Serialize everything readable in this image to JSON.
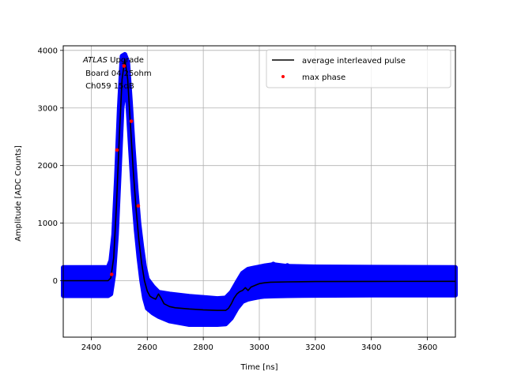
{
  "chart_data": {
    "type": "line",
    "xlabel": "Time [ns]",
    "ylabel": "Amplitude [ADC Counts]",
    "xlim": [
      2300,
      3700
    ],
    "ylim": [
      -980,
      4080
    ],
    "xticks": [
      2400,
      2600,
      2800,
      3000,
      3200,
      3400,
      3600
    ],
    "yticks": [
      0,
      1000,
      2000,
      3000,
      4000
    ],
    "grid": true,
    "legend_position": "top-right",
    "annotation": {
      "italic": "ATLAS",
      "rest": " Upgrade",
      "line2": " Board 04 25ohm",
      "line3": " Ch059 15dB"
    },
    "series": [
      {
        "name": "average interleaved pulse",
        "kind": "line",
        "color": "#000000",
        "x": [
          2300,
          2460,
          2470,
          2480,
          2490,
          2500,
          2510,
          2520,
          2530,
          2540,
          2550,
          2560,
          2570,
          2580,
          2590,
          2600,
          2610,
          2620,
          2630,
          2640,
          2650,
          2660,
          2680,
          2700,
          2750,
          2800,
          2850,
          2880,
          2890,
          2900,
          2910,
          2920,
          2930,
          2940,
          2950,
          2960,
          2970,
          2980,
          2990,
          3000,
          3020,
          3040,
          3100,
          3200,
          3400,
          3700
        ],
        "y": [
          0,
          0,
          50,
          400,
          1300,
          2500,
          3500,
          3850,
          3500,
          2700,
          1900,
          1250,
          700,
          300,
          0,
          -180,
          -270,
          -300,
          -320,
          -230,
          -310,
          -400,
          -450,
          -470,
          -490,
          -505,
          -515,
          -515,
          -480,
          -400,
          -300,
          -230,
          -190,
          -170,
          -120,
          -170,
          -110,
          -90,
          -70,
          -50,
          -35,
          -25,
          -20,
          -15,
          -12,
          -10
        ]
      },
      {
        "name": "max phase",
        "kind": "scatter",
        "color": "#ff0000",
        "x": [
          2473,
          2492,
          2517,
          2543,
          2568
        ],
        "y": [
          110,
          2270,
          3730,
          2770,
          1300
        ]
      }
    ],
    "band": {
      "color": "#0000ff",
      "x": [
        2300,
        2460,
        2470,
        2480,
        2490,
        2500,
        2510,
        2520,
        2530,
        2540,
        2550,
        2560,
        2570,
        2580,
        2590,
        2600,
        2620,
        2640,
        2680,
        2750,
        2850,
        2880,
        2900,
        2920,
        2940,
        2960,
        2980,
        3000,
        3020,
        3050,
        3100,
        3200,
        3400,
        3700
      ],
      "upper": [
        230,
        230,
        350,
        800,
        1800,
        3000,
        3900,
        3930,
        3800,
        3100,
        2300,
        1600,
        1000,
        600,
        250,
        30,
        -100,
        -200,
        -230,
        -270,
        -310,
        -300,
        -200,
        -30,
        130,
        200,
        220,
        240,
        260,
        280,
        250,
        240,
        235,
        230
      ],
      "lower": [
        -260,
        -260,
        -230,
        100,
        800,
        1900,
        3000,
        3400,
        3100,
        2300,
        1500,
        900,
        400,
        0,
        -300,
        -480,
        -560,
        -620,
        -700,
        -760,
        -760,
        -750,
        -650,
        -480,
        -360,
        -320,
        -300,
        -280,
        -270,
        -265,
        -260,
        -255,
        -250,
        -250
      ],
      "outliers": [
        {
          "x": 3100,
          "y": 265
        },
        {
          "x": 3050,
          "y": 290
        }
      ]
    }
  }
}
